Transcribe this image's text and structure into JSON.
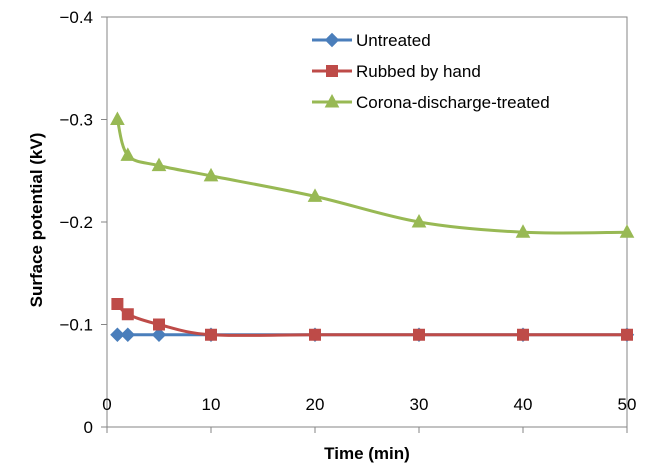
{
  "chart_data": {
    "type": "line",
    "xlabel": "Time (min)",
    "ylabel": "Surface potential (kV)",
    "xlim": [
      0,
      50
    ],
    "ylim": [
      0,
      -0.4
    ],
    "x_ticks": [
      0,
      10,
      20,
      30,
      40,
      50
    ],
    "x_tick_labels": [
      "0",
      "10",
      "20",
      "30",
      "40",
      "50"
    ],
    "y_ticks": [
      0,
      -0.1,
      -0.2,
      -0.3,
      -0.4
    ],
    "y_tick_labels": [
      "0",
      "−0.1",
      "−0.2",
      "−0.3",
      "−0.4"
    ],
    "grid": false,
    "legend_position": "top-right",
    "series": [
      {
        "name": "Untreated",
        "color": "#4a7ebb",
        "marker": "diamond",
        "x": [
          1,
          2,
          5,
          10,
          20,
          30,
          40,
          50
        ],
        "y": [
          -0.09,
          -0.09,
          -0.09,
          -0.09,
          -0.09,
          -0.09,
          -0.09,
          -0.09
        ]
      },
      {
        "name": "Rubbed by hand",
        "color": "#be4b48",
        "marker": "square",
        "x": [
          1,
          2,
          5,
          10,
          20,
          30,
          40,
          50
        ],
        "y": [
          -0.12,
          -0.11,
          -0.1,
          -0.09,
          -0.09,
          -0.09,
          -0.09,
          -0.09
        ]
      },
      {
        "name": "Corona-discharge-treated",
        "color": "#98b954",
        "marker": "triangle",
        "x": [
          1,
          2,
          5,
          10,
          20,
          30,
          40,
          50
        ],
        "y": [
          -0.3,
          -0.265,
          -0.255,
          -0.245,
          -0.225,
          -0.2,
          -0.19,
          -0.19
        ]
      }
    ]
  }
}
